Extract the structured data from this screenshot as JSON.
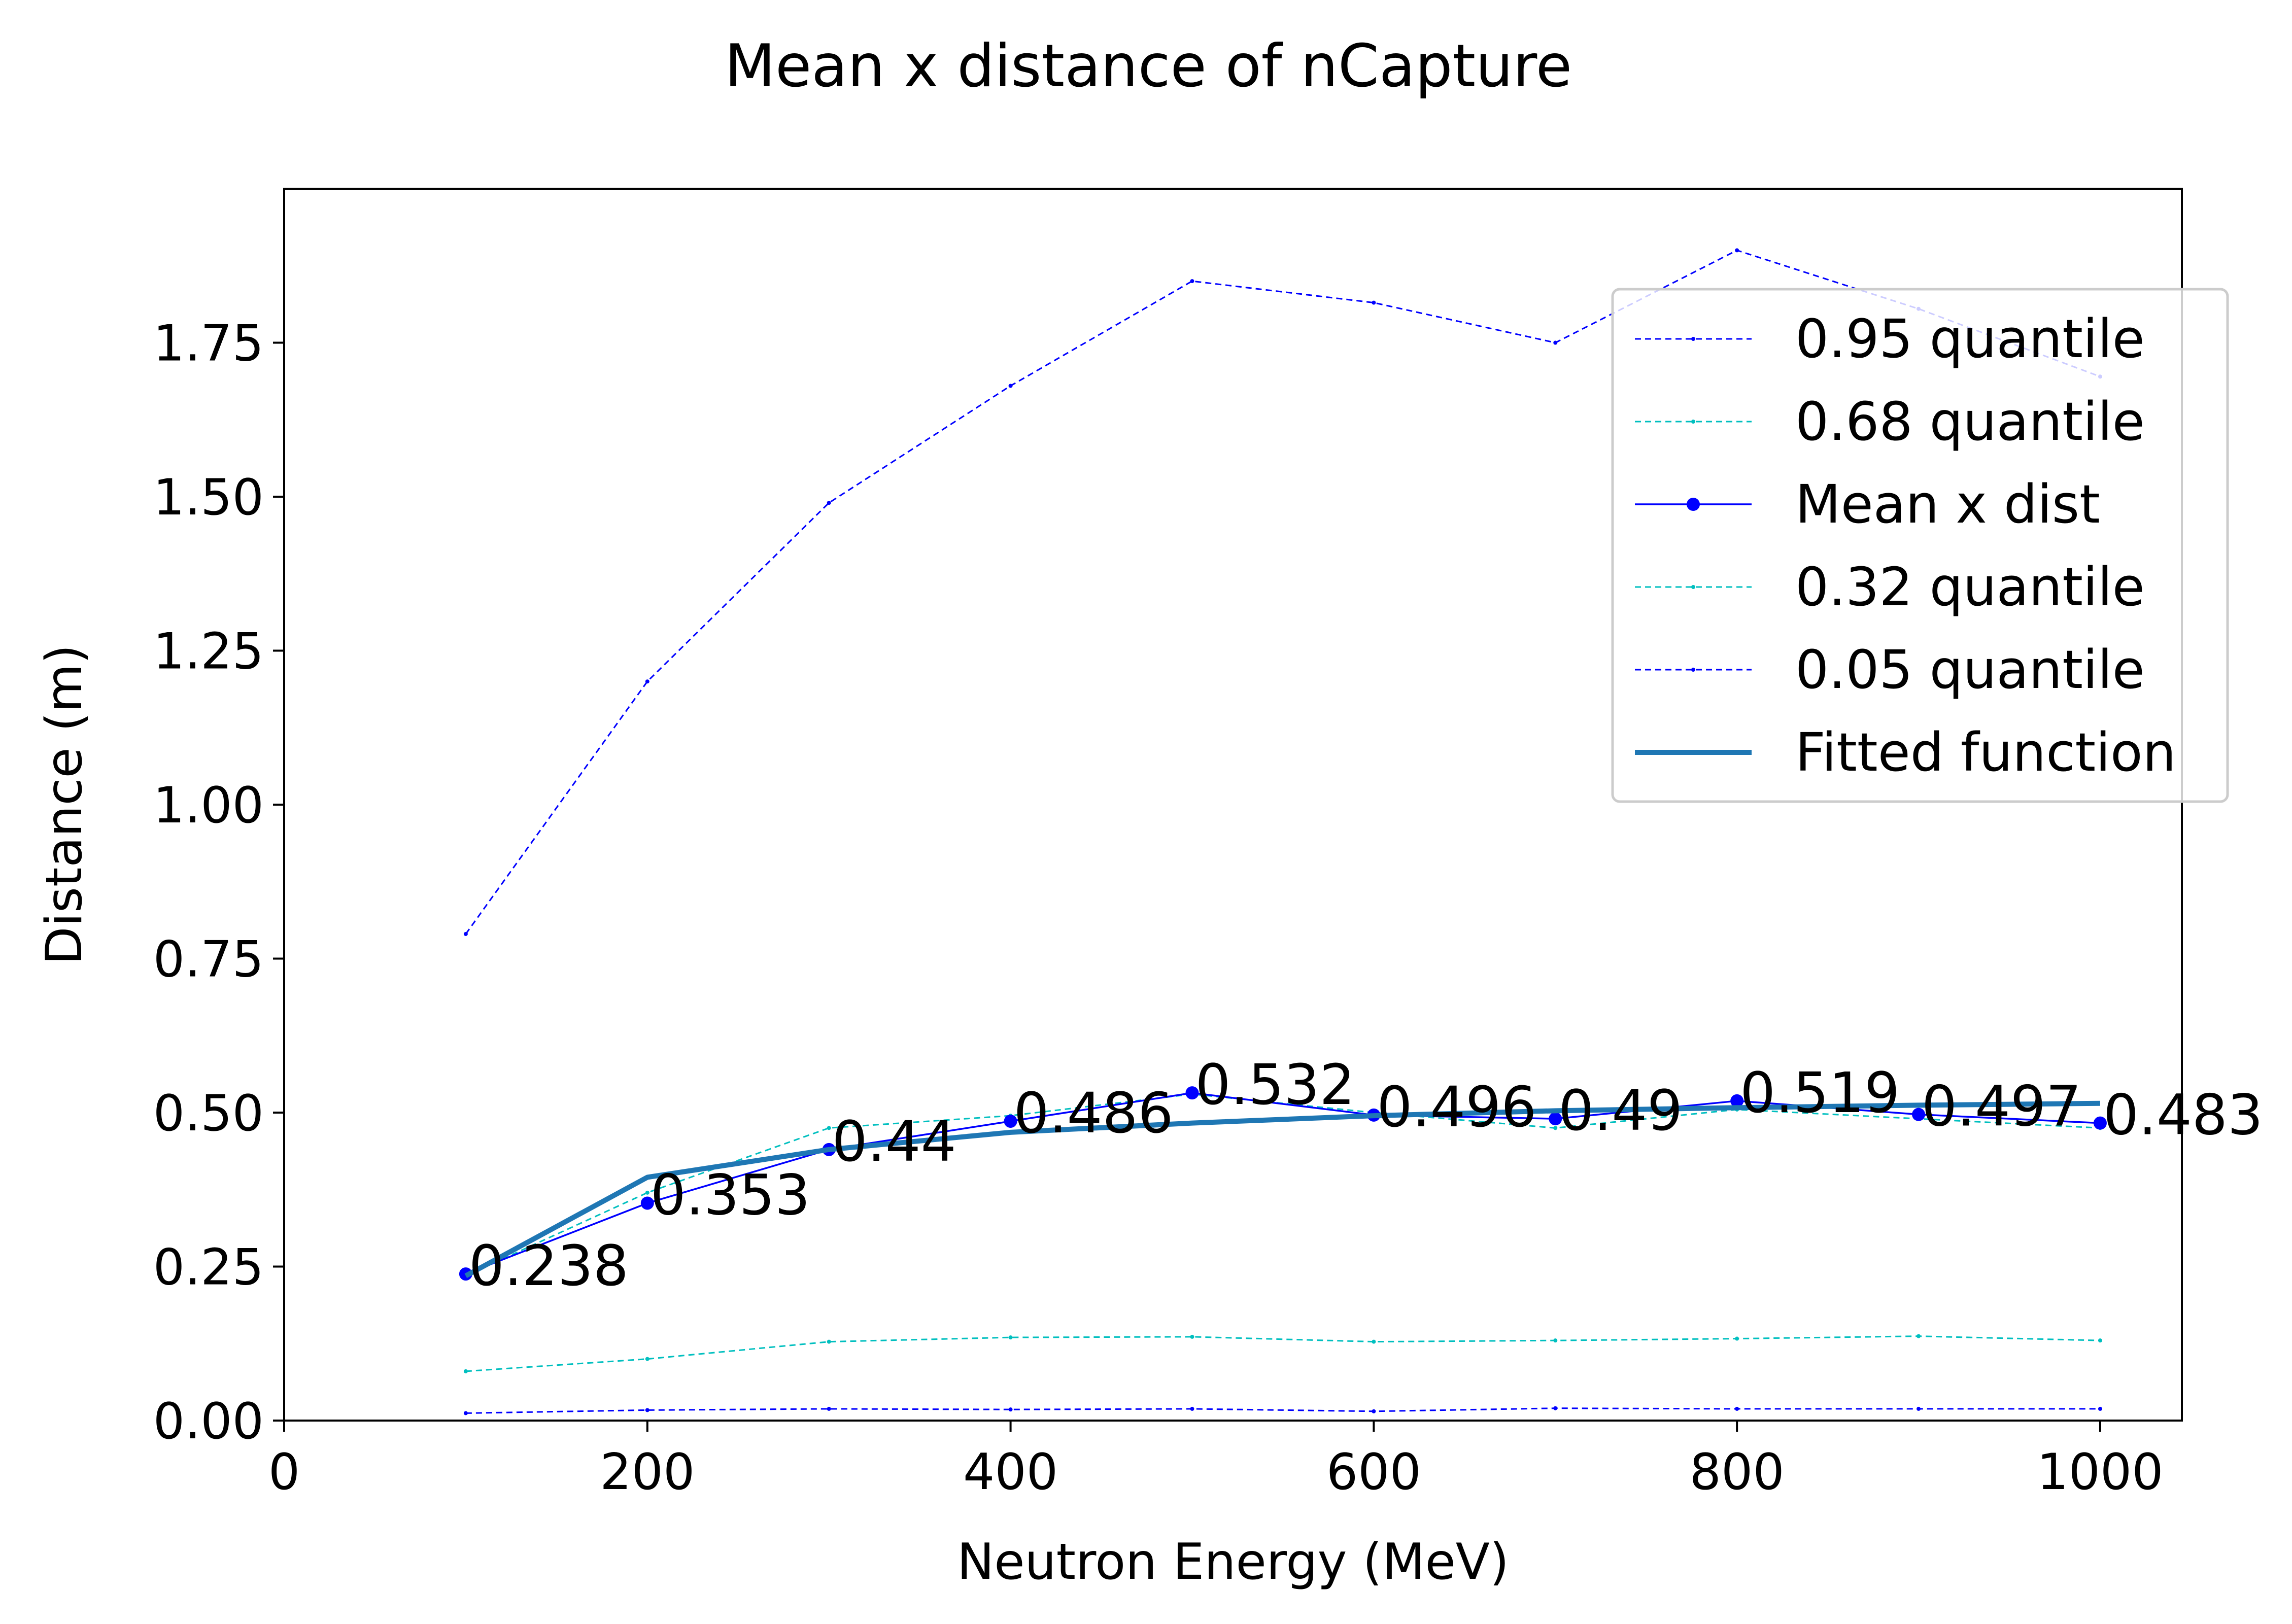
{
  "chart_data": {
    "type": "line",
    "title": "Mean x distance of nCapture",
    "xlabel": "Neutron Energy (MeV)",
    "ylabel": "Distance (m)",
    "xlim": [
      0,
      1045
    ],
    "ylim": [
      0,
      2.0
    ],
    "xticks": [
      0,
      200,
      400,
      600,
      800,
      1000
    ],
    "yticks": [
      0.0,
      0.25,
      0.5,
      0.75,
      1.0,
      1.25,
      1.5,
      1.75
    ],
    "xtick_labels": [
      "0",
      "200",
      "400",
      "600",
      "800",
      "1000"
    ],
    "ytick_labels": [
      "0.00",
      "0.25",
      "0.50",
      "0.75",
      "1.00",
      "1.25",
      "1.50",
      "1.75"
    ],
    "grid": false,
    "legend_position": "top-right",
    "x": [
      100,
      200,
      300,
      400,
      500,
      600,
      700,
      800,
      900,
      1000
    ],
    "series": [
      {
        "name": "0.95 quantile",
        "color": "#0000ff",
        "style": "dashed",
        "marker": "small-dot",
        "values": [
          0.79,
          1.2,
          1.49,
          1.68,
          1.85,
          1.815,
          1.75,
          1.9,
          1.805,
          1.695
        ]
      },
      {
        "name": "0.68 quantile",
        "color": "#00bfbf",
        "style": "dashed",
        "marker": "small-dot",
        "values": [
          0.235,
          0.37,
          0.475,
          0.495,
          0.53,
          0.5,
          0.475,
          0.505,
          0.49,
          0.475
        ]
      },
      {
        "name": "Mean x dist",
        "color": "#0000ff",
        "style": "solid",
        "marker": "dot",
        "values": [
          0.238,
          0.353,
          0.44,
          0.486,
          0.532,
          0.496,
          0.49,
          0.519,
          0.497,
          0.483
        ]
      },
      {
        "name": "0.32 quantile",
        "color": "#00bfbf",
        "style": "dashed",
        "marker": "small-dot",
        "values": [
          0.08,
          0.1,
          0.128,
          0.135,
          0.136,
          0.128,
          0.13,
          0.133,
          0.137,
          0.13
        ]
      },
      {
        "name": "0.05 quantile",
        "color": "#0000ff",
        "style": "dashed",
        "marker": "small-dot",
        "values": [
          0.012,
          0.017,
          0.019,
          0.018,
          0.019,
          0.015,
          0.02,
          0.019,
          0.019,
          0.019
        ]
      },
      {
        "name": "Fitted function",
        "color": "#1f77b4",
        "style": "thick",
        "marker": "none",
        "values": [
          0.235,
          0.395,
          0.44,
          0.468,
          0.483,
          0.495,
          0.503,
          0.508,
          0.512,
          0.515
        ]
      }
    ],
    "data_labels": [
      "0.238",
      "0.353",
      "0.44",
      "0.486",
      "0.532",
      "0.496",
      "0.49",
      "0.519",
      "0.497",
      "0.483"
    ],
    "data_label_series": "Mean x dist"
  }
}
